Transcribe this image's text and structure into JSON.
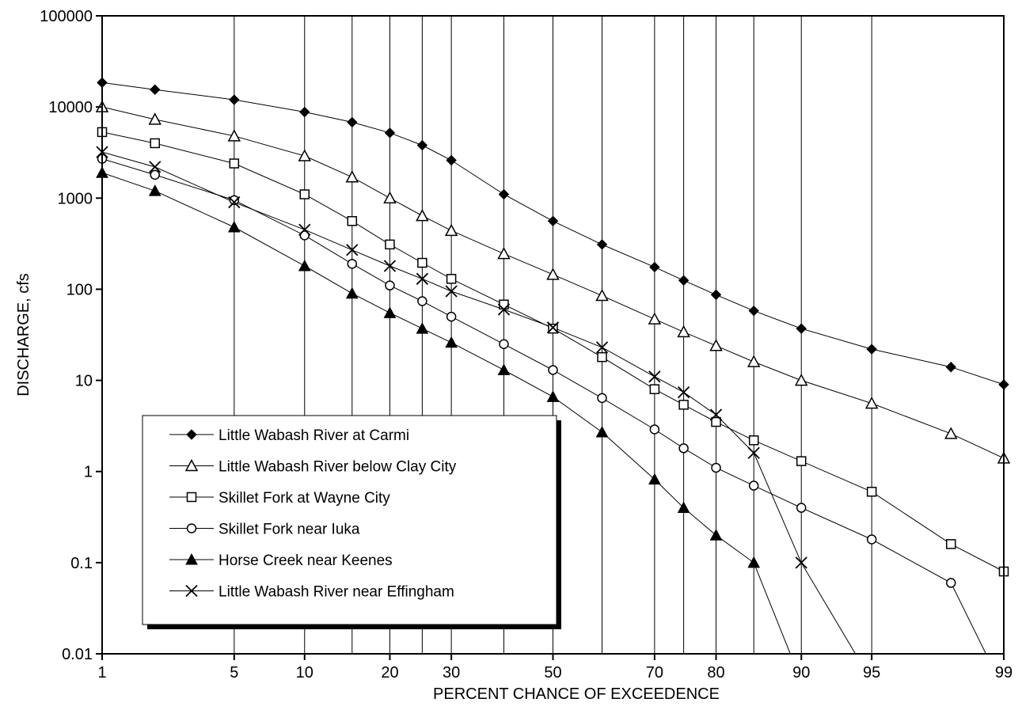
{
  "chart_data": {
    "type": "line",
    "xlabel": "PERCENT CHANCE OF EXCEEDENCE",
    "ylabel": "DISCHARGE, cfs",
    "x_scale": "normal-probability",
    "y_scale": "log",
    "xlim": [
      1,
      99
    ],
    "ylim": [
      0.01,
      100000
    ],
    "x_gridlines": [
      1,
      5,
      10,
      15,
      20,
      25,
      30,
      40,
      50,
      60,
      70,
      75,
      80,
      85,
      90,
      95,
      99
    ],
    "x_tick_labels": [
      "1",
      "5",
      "10",
      "20",
      "30",
      "50",
      "70",
      "80",
      "90",
      "95",
      "99"
    ],
    "y_tick_labels": [
      "0.01",
      "0.1",
      "1",
      "10",
      "100",
      "1000",
      "10000",
      "100000"
    ],
    "x": [
      1,
      2,
      5,
      10,
      15,
      20,
      25,
      30,
      40,
      50,
      60,
      70,
      75,
      80,
      85,
      90,
      95,
      98,
      99
    ],
    "legend_position": "lower-left",
    "series": [
      {
        "name": "Little Wabash River at Carmi",
        "marker": "filled-diamond",
        "values": [
          18500,
          15500,
          12000,
          8800,
          6800,
          5200,
          3800,
          2600,
          1100,
          560,
          310,
          175,
          125,
          87,
          58,
          37,
          22,
          14,
          9
        ]
      },
      {
        "name": "Little Wabash River below Clay City",
        "marker": "open-triangle",
        "values": [
          10000,
          7300,
          4800,
          2900,
          1700,
          1000,
          640,
          440,
          245,
          145,
          85,
          47,
          34,
          24,
          16,
          10,
          5.6,
          2.6,
          1.4
        ]
      },
      {
        "name": "Skillet Fork at Wayne City",
        "marker": "open-square",
        "values": [
          5300,
          4000,
          2400,
          1100,
          560,
          310,
          195,
          130,
          68,
          37,
          18,
          8,
          5.4,
          3.5,
          2.2,
          1.3,
          0.6,
          0.16,
          0.08
        ]
      },
      {
        "name": "Skillet Fork near Iuka",
        "marker": "open-circle",
        "values": [
          2700,
          1800,
          950,
          390,
          190,
          110,
          74,
          50,
          25,
          13,
          6.4,
          2.9,
          1.8,
          1.1,
          0.7,
          0.4,
          0.18,
          0.06,
          0.004
        ]
      },
      {
        "name": "Horse Creek near Keenes",
        "marker": "filled-triangle",
        "values": [
          1900,
          1200,
          480,
          180,
          90,
          55,
          37,
          26,
          13,
          6.6,
          2.7,
          0.82,
          0.4,
          0.2,
          0.1,
          0.005,
          null,
          null,
          null
        ]
      },
      {
        "name": "Little Wabash River near Effingham",
        "marker": "x",
        "values": [
          3200,
          2200,
          900,
          450,
          270,
          180,
          130,
          95,
          60,
          38,
          23,
          11,
          7.4,
          4.2,
          1.6,
          0.1,
          0.005,
          null,
          null
        ]
      }
    ]
  }
}
